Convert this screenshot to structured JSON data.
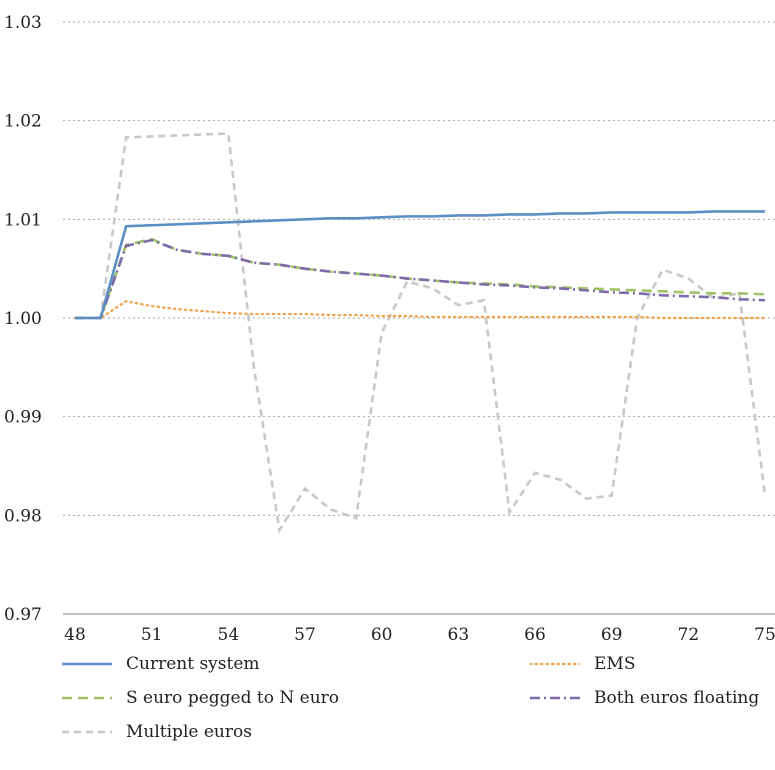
{
  "chart_data": {
    "type": "line",
    "title": "",
    "xlabel": "",
    "ylabel": "",
    "ylim": [
      0.97,
      1.03
    ],
    "xlim": [
      48,
      75
    ],
    "grid": "horizontal dotted",
    "legend_placement": "bottom",
    "y_ticks": [
      "0.97",
      "0.98",
      "0.99",
      "1.00",
      "1.01",
      "1.02",
      "1.03"
    ],
    "x_ticks": [
      "48",
      "51",
      "54",
      "57",
      "60",
      "63",
      "66",
      "69",
      "72",
      "75"
    ],
    "x": [
      48,
      49,
      50,
      51,
      52,
      53,
      54,
      55,
      56,
      57,
      58,
      59,
      60,
      61,
      62,
      63,
      64,
      65,
      66,
      67,
      68,
      69,
      70,
      71,
      72,
      73,
      74,
      75
    ],
    "series": [
      {
        "name": "Current system",
        "color": "#5b8ec4",
        "dash": "solid",
        "values": [
          1.0,
          1.0,
          1.0093,
          1.0094,
          1.0095,
          1.0096,
          1.0097,
          1.0098,
          1.0099,
          1.01,
          1.0101,
          1.0101,
          1.0102,
          1.0103,
          1.0103,
          1.0104,
          1.0104,
          1.0105,
          1.0105,
          1.0106,
          1.0106,
          1.0107,
          1.0107,
          1.0107,
          1.0107,
          1.0108,
          1.0108,
          1.0108
        ]
      },
      {
        "name": "EMS",
        "color": "#f0a24a",
        "dash": "dotted",
        "values": [
          1.0,
          1.0,
          1.0017,
          1.0012,
          1.0009,
          1.0007,
          1.0005,
          1.0004,
          1.0004,
          1.0004,
          1.0003,
          1.0003,
          1.0002,
          1.0002,
          1.0001,
          1.0001,
          1.0001,
          1.0001,
          1.0001,
          1.0001,
          1.0001,
          1.0001,
          1.0001,
          1.0,
          1.0,
          1.0,
          1.0,
          1.0
        ]
      },
      {
        "name": "S euro pegged to N euro",
        "color": "#9cc366",
        "dash": "dashed",
        "values": [
          1.0,
          1.0,
          1.0074,
          1.008,
          1.0069,
          1.0065,
          1.0063,
          1.0056,
          1.0054,
          1.005,
          1.0047,
          1.0045,
          1.0043,
          1.004,
          1.0038,
          1.0036,
          1.0035,
          1.0034,
          1.0032,
          1.0031,
          1.003,
          1.0029,
          1.0028,
          1.0027,
          1.0026,
          1.0025,
          1.0025,
          1.0024
        ]
      },
      {
        "name": "Both euros floating",
        "color": "#7e6aaa",
        "dash": "dashdot",
        "values": [
          1.0,
          1.0,
          1.0073,
          1.0079,
          1.0069,
          1.0065,
          1.0063,
          1.0056,
          1.0054,
          1.005,
          1.0047,
          1.0045,
          1.0043,
          1.004,
          1.0038,
          1.0036,
          1.0034,
          1.0033,
          1.0031,
          1.003,
          1.0028,
          1.0026,
          1.0025,
          1.0023,
          1.0022,
          1.0021,
          1.0019,
          1.0018
        ]
      },
      {
        "name": "Multiple euros",
        "color": "#c8c8c8",
        "dash": "dashed",
        "values": [
          1.0,
          1.0,
          1.0183,
          1.0184,
          1.0185,
          1.0186,
          1.0187,
          0.995,
          0.9785,
          0.9827,
          0.9806,
          0.9797,
          0.9985,
          1.0037,
          1.003,
          1.0013,
          1.0018,
          0.9803,
          0.9843,
          0.9836,
          0.9817,
          0.982,
          1.0,
          1.0049,
          1.004,
          1.002,
          1.0025,
          0.982
        ]
      }
    ]
  }
}
